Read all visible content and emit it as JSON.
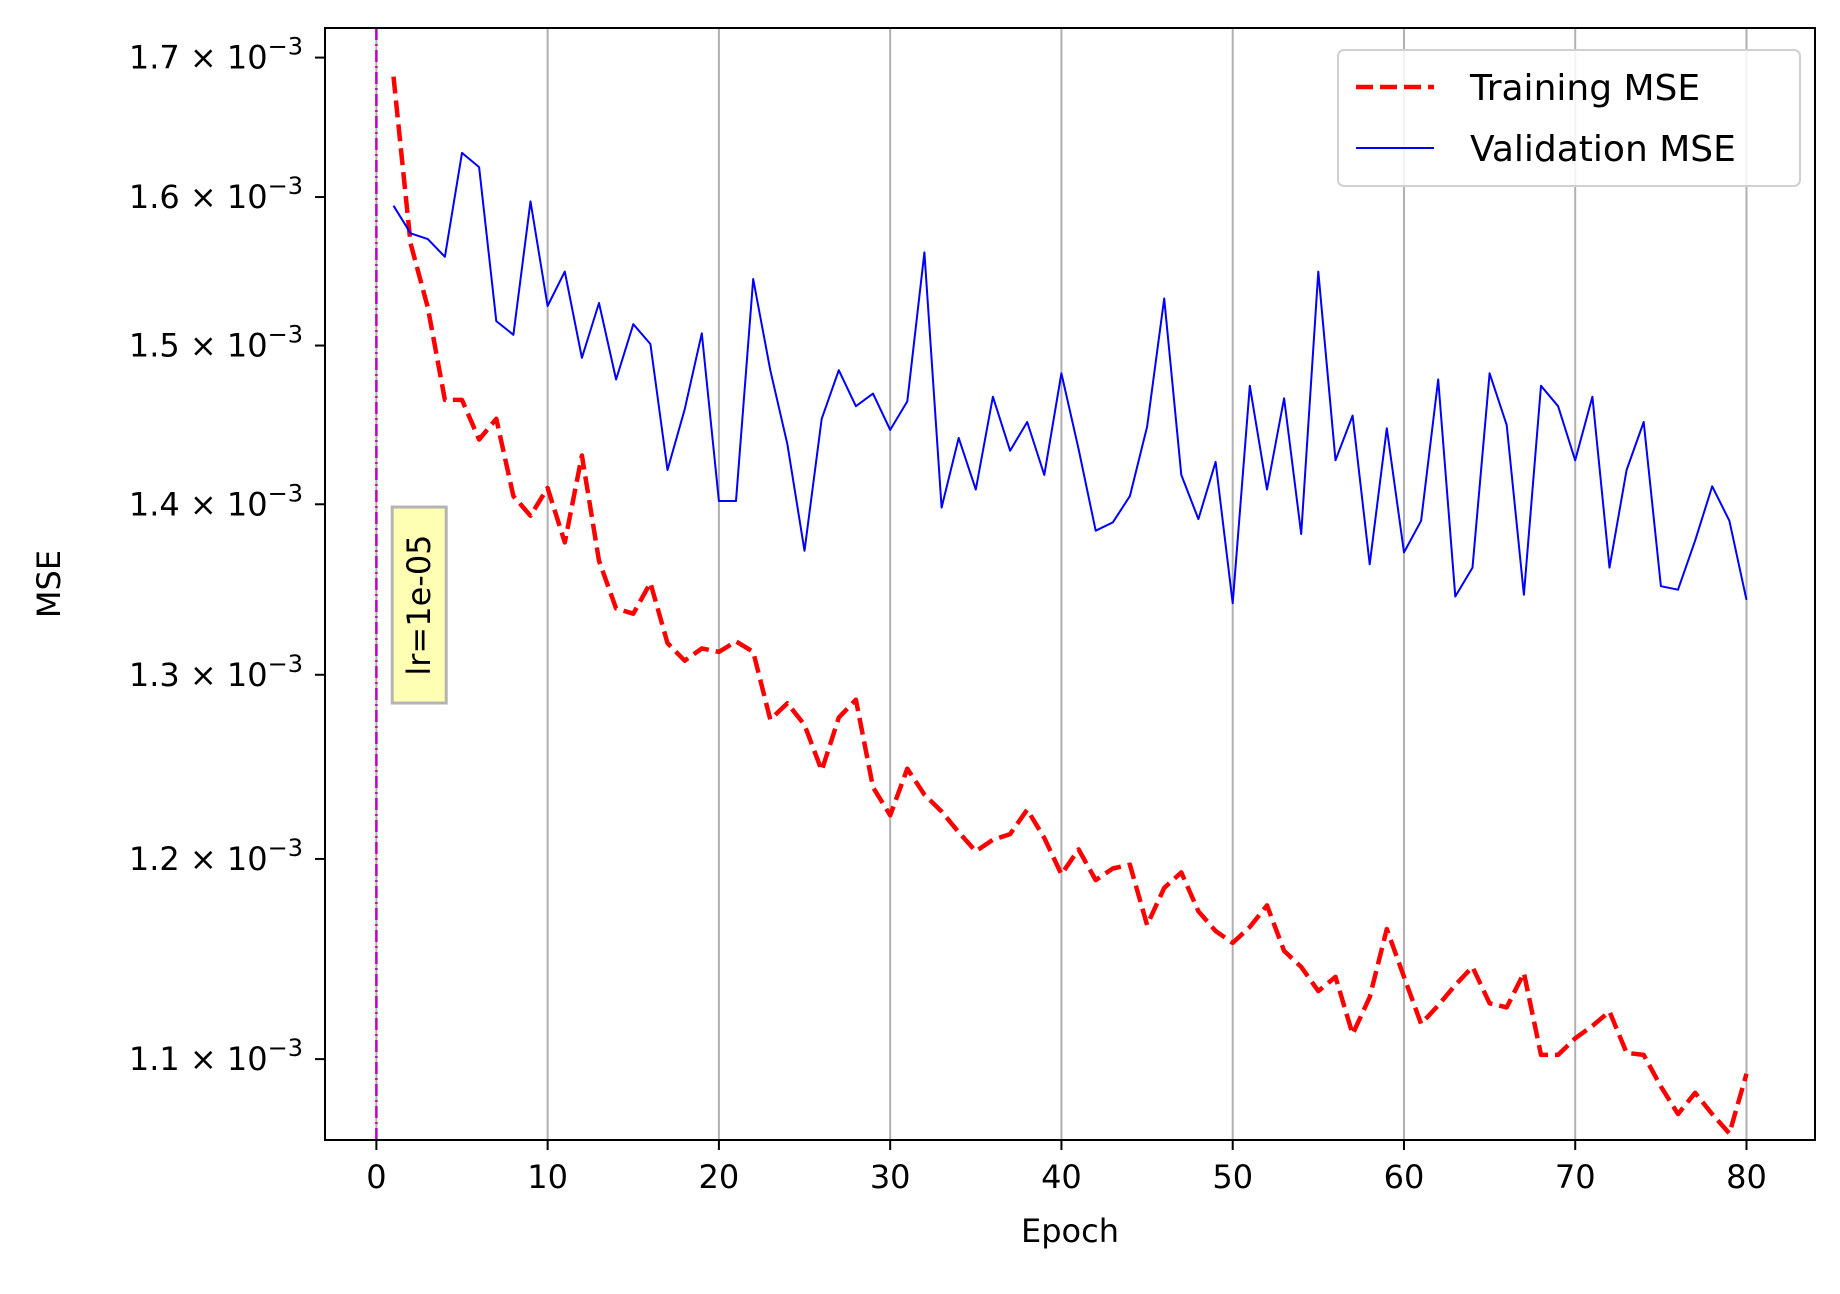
{
  "chart_data": {
    "type": "line",
    "xlabel": "Epoch",
    "ylabel": "MSE",
    "yscale": "log",
    "xlim": [
      -3,
      84
    ],
    "ylim": [
      0.001062,
      0.001722
    ],
    "grid": "vertical",
    "legend_position": "top-right",
    "x_ticks": [
      {
        "value": 0,
        "label": "0"
      },
      {
        "value": 10,
        "label": "10"
      },
      {
        "value": 20,
        "label": "20"
      },
      {
        "value": 30,
        "label": "30"
      },
      {
        "value": 40,
        "label": "40"
      },
      {
        "value": 50,
        "label": "50"
      },
      {
        "value": 60,
        "label": "60"
      },
      {
        "value": 70,
        "label": "70"
      },
      {
        "value": 80,
        "label": "80"
      }
    ],
    "y_ticks": [
      {
        "value": 0.0011,
        "mantissa": "1.1",
        "sep": " × ",
        "base": "10",
        "exp": "−3"
      },
      {
        "value": 0.0012,
        "mantissa": "1.2",
        "sep": " × ",
        "base": "10",
        "exp": "−3"
      },
      {
        "value": 0.0013,
        "mantissa": "1.3",
        "sep": " × ",
        "base": "10",
        "exp": "−3"
      },
      {
        "value": 0.0014,
        "mantissa": "1.4",
        "sep": " × ",
        "base": "10",
        "exp": "−3"
      },
      {
        "value": 0.0015,
        "mantissa": "1.5",
        "sep": " × ",
        "base": "10",
        "exp": "−3"
      },
      {
        "value": 0.0016,
        "mantissa": "1.6",
        "sep": " × ",
        "base": "10",
        "exp": "−3"
      },
      {
        "value": 0.0017,
        "mantissa": "1.7",
        "sep": " × ",
        "base": "10",
        "exp": "−3"
      }
    ],
    "series": [
      {
        "name": "Training MSE",
        "color": "#ff0000",
        "style": "dashed",
        "x": [
          1,
          2,
          3,
          4,
          5,
          6,
          7,
          8,
          9,
          10,
          11,
          12,
          13,
          14,
          15,
          16,
          17,
          18,
          19,
          20,
          21,
          22,
          23,
          24,
          25,
          26,
          27,
          28,
          29,
          30,
          31,
          32,
          33,
          34,
          35,
          36,
          37,
          38,
          39,
          40,
          41,
          42,
          43,
          44,
          45,
          46,
          47,
          48,
          49,
          50,
          51,
          52,
          53,
          54,
          55,
          56,
          57,
          58,
          59,
          60,
          61,
          62,
          63,
          64,
          65,
          66,
          67,
          68,
          69,
          70,
          71,
          72,
          73,
          74,
          75,
          76,
          77,
          78,
          79,
          80
        ],
        "y": [
          0.001686,
          0.001568,
          0.001525,
          0.001465,
          0.001465,
          0.00144,
          0.001453,
          0.001405,
          0.001393,
          0.00141,
          0.001377,
          0.00143,
          0.001366,
          0.001338,
          0.001335,
          0.001353,
          0.001318,
          0.001308,
          0.001315,
          0.001313,
          0.001319,
          0.001313,
          0.001275,
          0.001284,
          0.001272,
          0.001247,
          0.001276,
          0.001286,
          0.001238,
          0.001223,
          0.001248,
          0.001234,
          0.001225,
          0.001214,
          0.001204,
          0.00121,
          0.001213,
          0.001226,
          0.001211,
          0.001192,
          0.001205,
          0.001189,
          0.001195,
          0.001197,
          0.001166,
          0.001185,
          0.001193,
          0.001173,
          0.001163,
          0.001157,
          0.001165,
          0.001176,
          0.001153,
          0.001145,
          0.001133,
          0.00114,
          0.001112,
          0.00113,
          0.001164,
          0.00114,
          0.001117,
          0.001126,
          0.001136,
          0.001145,
          0.001127,
          0.001125,
          0.001142,
          0.001102,
          0.001102,
          0.00111,
          0.001116,
          0.001123,
          0.001103,
          0.001102,
          0.001087,
          0.001074,
          0.001084,
          0.001074,
          0.001065,
          0.001093
        ]
      },
      {
        "name": "Validation MSE",
        "color": "#0000ff",
        "style": "solid",
        "x": [
          1,
          2,
          3,
          4,
          5,
          6,
          7,
          8,
          9,
          10,
          11,
          12,
          13,
          14,
          15,
          16,
          17,
          18,
          19,
          20,
          21,
          22,
          23,
          24,
          25,
          26,
          27,
          28,
          29,
          30,
          31,
          32,
          33,
          34,
          35,
          36,
          37,
          38,
          39,
          40,
          41,
          42,
          43,
          44,
          45,
          46,
          47,
          48,
          49,
          50,
          51,
          52,
          53,
          54,
          55,
          56,
          57,
          58,
          59,
          60,
          61,
          62,
          63,
          64,
          65,
          66,
          67,
          68,
          69,
          70,
          71,
          72,
          73,
          74,
          75,
          76,
          77,
          78,
          79,
          80
        ],
        "y": [
          0.001594,
          0.001575,
          0.001571,
          0.001559,
          0.001631,
          0.001621,
          0.001516,
          0.001507,
          0.001597,
          0.001526,
          0.001549,
          0.001492,
          0.001528,
          0.001478,
          0.001514,
          0.001501,
          0.001421,
          0.001459,
          0.001508,
          0.001402,
          0.001402,
          0.001544,
          0.001484,
          0.001437,
          0.001372,
          0.001453,
          0.001484,
          0.001461,
          0.001469,
          0.001446,
          0.001464,
          0.001562,
          0.001398,
          0.001441,
          0.001409,
          0.001467,
          0.001433,
          0.001451,
          0.001418,
          0.001482,
          0.001434,
          0.001384,
          0.001389,
          0.001405,
          0.001448,
          0.001531,
          0.001418,
          0.001391,
          0.001426,
          0.001341,
          0.001474,
          0.001409,
          0.001466,
          0.001382,
          0.001549,
          0.001427,
          0.001455,
          0.001364,
          0.001447,
          0.001371,
          0.00139,
          0.001478,
          0.001345,
          0.001362,
          0.001482,
          0.001449,
          0.001346,
          0.001474,
          0.001461,
          0.001427,
          0.001467,
          0.001362,
          0.001421,
          0.001451,
          0.001351,
          0.001349,
          0.001378,
          0.001411,
          0.00139,
          0.001343
        ]
      }
    ],
    "vline": {
      "x": 0,
      "color": "#c000c0"
    },
    "annotation": {
      "text": "lr=1e-05",
      "x": 2.5,
      "y": 0.00134,
      "rotation": 90,
      "background": "#ffffb3"
    }
  }
}
